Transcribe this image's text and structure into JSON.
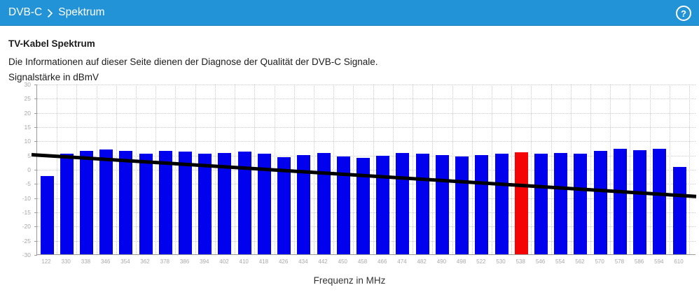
{
  "header": {
    "breadcrumb": {
      "section": "DVB-C",
      "page": "Spektrum"
    },
    "help_icon": "?"
  },
  "content": {
    "title": "TV-Kabel Spektrum",
    "description": "Die Informationen auf dieser Seite dienen der Diagnose der Qualität der DVB-C Signale.",
    "y_axis_title": "Signalstärke in dBmV",
    "x_axis_title": "Frequenz in MHz"
  },
  "chart_data": {
    "type": "bar",
    "title": "TV-Kabel Spektrum",
    "xlabel": "Frequenz in MHz",
    "ylabel": "Signalstärke in dBmV",
    "ylim": [
      -30,
      30
    ],
    "ytick_step": 5,
    "yticks": [
      30,
      25,
      20,
      15,
      10,
      5,
      0,
      -5,
      -10,
      -15,
      -20,
      -25,
      -30
    ],
    "categories": [
      122,
      330,
      338,
      346,
      354,
      362,
      378,
      386,
      394,
      402,
      410,
      418,
      426,
      434,
      442,
      450,
      458,
      466,
      474,
      482,
      490,
      498,
      522,
      530,
      538,
      546,
      554,
      562,
      570,
      578,
      586,
      594,
      610
    ],
    "values": [
      -2.5,
      5.5,
      6.3,
      6.8,
      6.3,
      5.5,
      6.3,
      6.2,
      5.3,
      5.7,
      6.2,
      5.3,
      4.2,
      4.9,
      5.7,
      4.5,
      4.0,
      4.7,
      5.6,
      5.4,
      5.0,
      4.5,
      5.0,
      5.4,
      5.8,
      5.4,
      5.7,
      5.5,
      6.5,
      7.2,
      6.7,
      7.1,
      0.8
    ],
    "highlight_index": 24,
    "trend_line": {
      "start_value": 5.3,
      "end_value": -9.4
    },
    "grid": true,
    "legend_position": "none",
    "colors": {
      "bar": "#0101ee",
      "highlight": "#f40404",
      "trend": "#000000",
      "grid": "#c9c9c9",
      "axis": "#9b9b9b",
      "tick_text": "#a6a6a6",
      "header_bg": "#2193d6"
    }
  }
}
